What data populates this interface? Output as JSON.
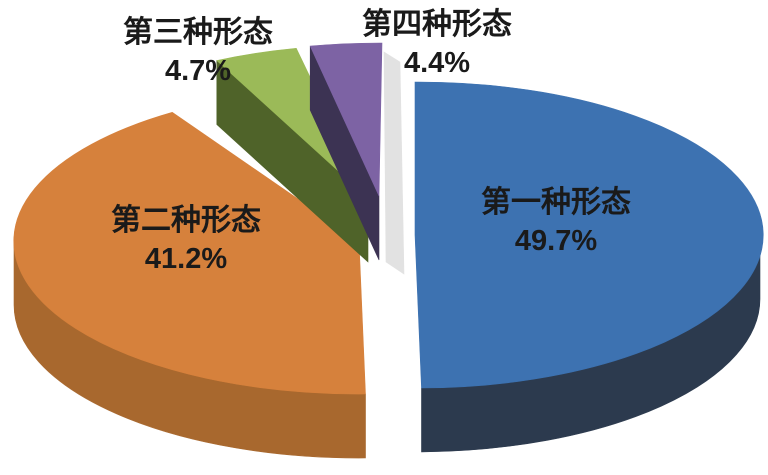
{
  "chart_data": {
    "type": "pie",
    "style": "3d-exploded",
    "title": "",
    "direction": "clockwise",
    "start_angle_deg": 0,
    "unit": "%",
    "categories": [
      "第一种形态",
      "第二种形态",
      "第三种形态",
      "第四种形态"
    ],
    "values": [
      49.7,
      41.2,
      4.7,
      4.4
    ],
    "legend": "none",
    "background": "#FFFFFF",
    "text_color": "#1A1A1A",
    "shadow_color": "#C6C6C6",
    "slices": [
      {
        "label": "第一种形态",
        "value": 49.7,
        "display": "49.7%",
        "color_top": "#3D72B1",
        "color_side": "#2C3A4E"
      },
      {
        "label": "第二种形态",
        "value": 41.2,
        "display": "41.2%",
        "color_top": "#D6813C",
        "color_side": "#A8682E"
      },
      {
        "label": "第三种形态",
        "value": 4.7,
        "display": "4.7%",
        "color_top": "#9BBA58",
        "color_side": "#4F6329"
      },
      {
        "label": "第四种形态",
        "value": 4.4,
        "display": "4.4%",
        "color_top": "#7D63A4",
        "color_side": "#3C3353"
      }
    ]
  }
}
